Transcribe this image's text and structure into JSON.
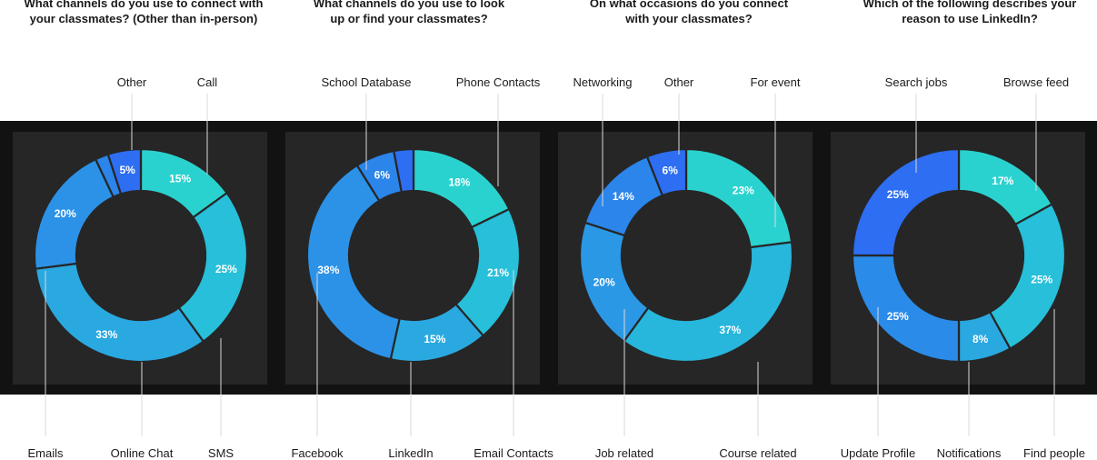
{
  "chart_data": [
    {
      "type": "donut",
      "title": "What channels do you use to connect with\nyour classmates? (Other than in-person)",
      "slices": [
        {
          "label": "Call",
          "value": 15,
          "pct_label": "15%",
          "color": "#2ad2cf"
        },
        {
          "label": "SMS",
          "value": 25,
          "pct_label": "25%",
          "color": "#27bfd9"
        },
        {
          "label": "Online Chat",
          "value": 33,
          "pct_label": "33%",
          "color": "#2aa8e0"
        },
        {
          "label": "Emails",
          "value": 20,
          "pct_label": "20%",
          "color": "#2b92e8"
        },
        {
          "label": "",
          "value": 2,
          "pct_label": "",
          "color": "#2b85eb"
        },
        {
          "label": "Other",
          "value": 5,
          "pct_label": "5%",
          "color": "#2d6ef2"
        }
      ]
    },
    {
      "type": "donut",
      "title": "What channels do you use to look\nup or find your classmates?",
      "slices": [
        {
          "label": "Phone Contacts",
          "value": 18,
          "pct_label": "18%",
          "color": "#2ad2cf"
        },
        {
          "label": "Email Contacts",
          "value": 21,
          "pct_label": "21%",
          "color": "#27bfd9"
        },
        {
          "label": "LinkedIn",
          "value": 15,
          "pct_label": "15%",
          "color": "#2aa8e0"
        },
        {
          "label": "Facebook",
          "value": 38,
          "pct_label": "38%",
          "color": "#2b92e8"
        },
        {
          "label": "School Database",
          "value": 6,
          "pct_label": "6%",
          "color": "#2b85eb"
        },
        {
          "label": "",
          "value": 3,
          "pct_label": "",
          "color": "#2d6ef2"
        }
      ]
    },
    {
      "type": "donut",
      "title": "On what occasions do you connect\nwith your classmates?",
      "slices": [
        {
          "label": "For event",
          "value": 23,
          "pct_label": "23%",
          "color": "#2ad2cf"
        },
        {
          "label": "Course related",
          "value": 37,
          "pct_label": "37%",
          "color": "#27b6dc"
        },
        {
          "label": "Job related",
          "value": 20,
          "pct_label": "20%",
          "color": "#2b98e5"
        },
        {
          "label": "Networking",
          "value": 14,
          "pct_label": "14%",
          "color": "#2b85eb"
        },
        {
          "label": "Other",
          "value": 6,
          "pct_label": "6%",
          "color": "#2d6ef2"
        }
      ]
    },
    {
      "type": "donut",
      "title": "Which of the following describes your\nreason to use LinkedIn?",
      "slices": [
        {
          "label": "Browse feed",
          "value": 17,
          "pct_label": "17%",
          "color": "#2ad2cf"
        },
        {
          "label": "Find people",
          "value": 25,
          "pct_label": "25%",
          "color": "#27bfd9"
        },
        {
          "label": "Notifications",
          "value": 8,
          "pct_label": "8%",
          "color": "#2aa8e0"
        },
        {
          "label": "Update Profile",
          "value": 25,
          "pct_label": "25%",
          "color": "#2b8be9"
        },
        {
          "label": "Search jobs",
          "value": 25,
          "pct_label": "25%",
          "color": "#2d6ef2"
        }
      ]
    }
  ]
}
